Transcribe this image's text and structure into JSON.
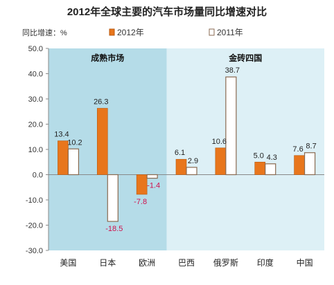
{
  "chart_data": {
    "type": "bar",
    "title": "2012年全球主要的汽车市场量同比增速对比",
    "ylabel": "同比增速：%",
    "ylim": [
      -30,
      50
    ],
    "yticks": [
      "50.0",
      "40.0",
      "30.0",
      "20.0",
      "10.0",
      "0.0",
      "-10.0",
      "-20.0",
      "-30.0"
    ],
    "categories": [
      "美国",
      "日本",
      "欧洲",
      "巴西",
      "俄罗斯",
      "印度",
      "中国"
    ],
    "series": [
      {
        "name": "2012年",
        "values": [
          13.4,
          26.3,
          -7.8,
          6.1,
          10.6,
          5.0,
          7.6
        ],
        "labels": [
          "13.4",
          "26.3",
          "-7.8",
          "6.1",
          "10.6",
          "5.0",
          "7.6"
        ],
        "color": "#E8761C"
      },
      {
        "name": "2011年",
        "values": [
          10.2,
          -18.5,
          -1.4,
          2.9,
          38.7,
          4.3,
          8.7
        ],
        "labels": [
          "10.2",
          "-18.5",
          "-1.4",
          "2.9",
          "38.7",
          "4.3",
          "8.7"
        ],
        "color": "#FFFFFF"
      }
    ],
    "groups": [
      {
        "label": "成熟市场",
        "categories": [
          "美国",
          "日本",
          "欧洲"
        ],
        "color": "#B5DCE8"
      },
      {
        "label": "金砖四国",
        "categories": [
          "巴西",
          "俄罗斯",
          "印度",
          "中国"
        ],
        "color": "#DDF0F6"
      }
    ],
    "negative_label_color": "#D0104C",
    "legend_position": "top-right"
  }
}
